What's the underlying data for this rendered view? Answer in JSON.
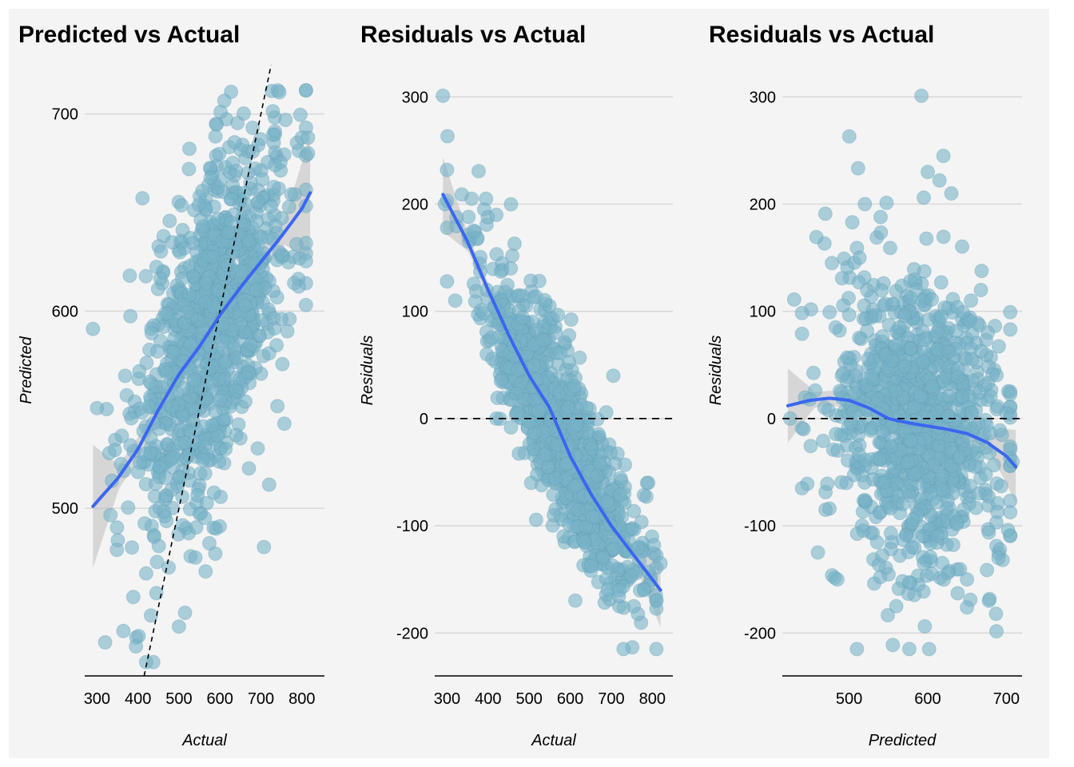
{
  "chart_data": [
    {
      "type": "scatter",
      "title": "Predicted vs Actual",
      "xlabel": "Actual",
      "ylabel": "Predicted",
      "xlim": [
        270,
        855
      ],
      "ylim": [
        415,
        725
      ],
      "xticks": [
        300,
        400,
        500,
        600,
        700,
        800
      ],
      "yticks": [
        500,
        600,
        700
      ],
      "grid": "horizontal",
      "point_color": "#78b3c8",
      "trend_color": "#3a66f2",
      "reference_line": {
        "kind": "identity",
        "style": "dashed"
      },
      "n_points": 1000,
      "point_summary": {
        "x_range": [
          290,
          820
        ],
        "y_range": [
          422,
          712
        ],
        "correlation": "positive"
      },
      "smooth": {
        "x": [
          290,
          350,
          400,
          450,
          500,
          550,
          600,
          650,
          700,
          750,
          800,
          820
        ],
        "y": [
          501,
          515,
          530,
          550,
          568,
          582,
          598,
          612,
          625,
          638,
          652,
          660
        ]
      },
      "sample_points": [
        [
          290,
          591
        ],
        [
          320,
          432
        ],
        [
          395,
          430
        ],
        [
          420,
          422
        ],
        [
          745,
          711
        ],
        [
          760,
          697
        ],
        [
          800,
          688
        ],
        [
          815,
          688
        ],
        [
          815,
          680
        ],
        [
          670,
          681
        ],
        [
          680,
          681
        ],
        [
          330,
          528
        ],
        [
          380,
          618
        ],
        [
          500,
          440
        ],
        [
          515,
          447
        ],
        [
          540,
          475
        ],
        [
          565,
          468
        ],
        [
          620,
          640
        ],
        [
          660,
          660
        ],
        [
          720,
          512
        ],
        [
          750,
          596
        ],
        [
          770,
          596
        ],
        [
          420,
          467
        ],
        [
          445,
          457
        ],
        [
          475,
          470
        ]
      ]
    },
    {
      "type": "scatter",
      "title": "Residuals vs Actual",
      "xlabel": "Actual",
      "ylabel": "Residuals",
      "xlim": [
        270,
        850
      ],
      "ylim": [
        -240,
        330
      ],
      "xticks": [
        300,
        400,
        500,
        600,
        700,
        800
      ],
      "yticks": [
        -200,
        -100,
        0,
        100,
        200,
        300
      ],
      "grid": "horizontal",
      "point_color": "#78b3c8",
      "trend_color": "#3a66f2",
      "reference_line": {
        "kind": "y=0",
        "style": "dashed"
      },
      "n_points": 1000,
      "point_summary": {
        "x_range": [
          290,
          820
        ],
        "y_range": [
          -215,
          301
        ],
        "correlation": "negative"
      },
      "smooth": {
        "x": [
          290,
          350,
          400,
          450,
          500,
          550,
          600,
          650,
          700,
          750,
          800,
          820
        ],
        "y": [
          209,
          165,
          120,
          78,
          40,
          10,
          -35,
          -70,
          -100,
          -125,
          -150,
          -160
        ]
      },
      "sample_points": [
        [
          290,
          301
        ],
        [
          295,
          200
        ],
        [
          320,
          110
        ],
        [
          360,
          205
        ],
        [
          395,
          205
        ],
        [
          420,
          190
        ],
        [
          455,
          140
        ],
        [
          475,
          115
        ],
        [
          505,
          -60
        ],
        [
          560,
          -90
        ],
        [
          620,
          -85
        ],
        [
          680,
          -130
        ],
        [
          720,
          -160
        ],
        [
          730,
          -215
        ],
        [
          755,
          -175
        ],
        [
          780,
          -160
        ],
        [
          820,
          -135
        ],
        [
          640,
          10
        ],
        [
          705,
          40
        ],
        [
          790,
          -60
        ],
        [
          420,
          0
        ],
        [
          610,
          30
        ]
      ]
    },
    {
      "type": "scatter",
      "title": "Residuals vs Actual",
      "xlabel": "Predicted",
      "ylabel": "Residuals",
      "xlim": [
        415,
        720
      ],
      "ylim": [
        -240,
        330
      ],
      "xticks": [
        500,
        600,
        700
      ],
      "yticks": [
        -200,
        -100,
        0,
        100,
        200,
        300
      ],
      "grid": "horizontal",
      "point_color": "#78b3c8",
      "trend_color": "#3a66f2",
      "reference_line": {
        "kind": "y=0",
        "style": "dashed"
      },
      "n_points": 1000,
      "point_summary": {
        "x_range": [
          422,
          712
        ],
        "y_range": [
          -215,
          301
        ],
        "correlation": "none"
      },
      "smooth": {
        "x": [
          422,
          450,
          475,
          500,
          525,
          550,
          575,
          600,
          625,
          650,
          675,
          700,
          712
        ],
        "y": [
          12,
          17,
          19,
          17,
          10,
          0,
          -4,
          -7,
          -10,
          -14,
          -22,
          -35,
          -45
        ]
      },
      "sample_points": [
        [
          425,
          0
        ],
        [
          430,
          111
        ],
        [
          440,
          -65
        ],
        [
          450,
          18
        ],
        [
          470,
          -85
        ],
        [
          485,
          -150
        ],
        [
          510,
          -215
        ],
        [
          520,
          200
        ],
        [
          540,
          188
        ],
        [
          592,
          301
        ],
        [
          595,
          206
        ],
        [
          600,
          230
        ],
        [
          615,
          222
        ],
        [
          620,
          245
        ],
        [
          630,
          210
        ],
        [
          650,
          -150
        ],
        [
          690,
          -130
        ],
        [
          700,
          5
        ],
        [
          708,
          -40
        ],
        [
          655,
          110
        ],
        [
          560,
          -175
        ],
        [
          580,
          -120
        ]
      ]
    }
  ]
}
